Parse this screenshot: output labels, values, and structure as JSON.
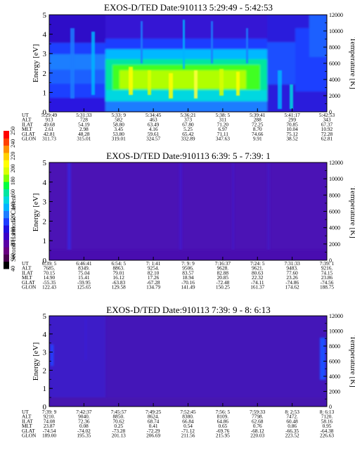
{
  "colorbar": {
    "title": "Second Harmonic Current",
    "ticks": [
      "40",
      "60",
      "80",
      "100",
      "120",
      "140",
      "160",
      "180",
      "200",
      "220",
      "240",
      "250"
    ],
    "colors": [
      "#000000",
      "#4a004f",
      "#6a0080",
      "#5b00a6",
      "#3a00c8",
      "#1f0fe0",
      "#1d3cff",
      "#1e7dff",
      "#00b4ff",
      "#00d8e0",
      "#00e6a0",
      "#00ff40",
      "#80ff00",
      "#d8ff00",
      "#ffff00",
      "#ffd000",
      "#ff9000",
      "#ff4000",
      "#ff0000"
    ]
  },
  "row_labels": [
    "UT",
    "ALT",
    "ILAT",
    "MLT",
    "GLAT",
    "GLON"
  ],
  "chart_data": [
    {
      "type": "heatmap",
      "title": "EXOS-D/TED   Date:910113  5:29:49 - 5:42:53",
      "ylabel": "Energy [eV]",
      "y2label": "Temperature [K]",
      "yticks": [
        "0",
        "1",
        "2",
        "3",
        "4",
        "5"
      ],
      "y2ticks": [
        "0",
        "2000",
        "4000",
        "6000",
        "8000",
        "10000",
        "12000"
      ],
      "ylim": [
        0,
        5
      ],
      "y2lim": [
        0,
        12000
      ],
      "orbit": {
        "UT": [
          "5:29:49",
          "5:31:33",
          "5:33: 9",
          "5:34:45",
          "5:36:21",
          "5:38: 5",
          "5:39:41",
          "5:41:17",
          "5:42:53"
        ],
        "ALT": [
          "913",
          "728",
          "582",
          "463",
          "373",
          "311",
          "288",
          "299",
          "343"
        ],
        "ILAT": [
          "49.68",
          "54.19",
          "58.80",
          "63.49",
          "67.80",
          "71.20",
          "72.25",
          "70.85",
          "67.37"
        ],
        "MLT": [
          "2.61",
          "2.98",
          "3.45",
          "4.16",
          "5.25",
          "6.97",
          "8.70",
          "10.04",
          "10.92"
        ],
        "GLAT": [
          "42.81",
          "48.28",
          "53.80",
          "59.61",
          "65.42",
          "71.11",
          "74.66",
          "75.12",
          "72.28"
        ],
        "GLON": [
          "311.73",
          "315.01",
          "319.01",
          "324.57",
          "332.89",
          "347.63",
          "9.91",
          "38.52",
          "62.81"
        ]
      }
    },
    {
      "type": "heatmap",
      "title": "EXOS-D/TED   Date:910113  6:39: 5 - 7:39: 1",
      "ylabel": "Energy [eV]",
      "y2label": "Temperature [K]",
      "yticks": [
        "0",
        "1",
        "2",
        "3",
        "4",
        "5"
      ],
      "y2ticks": [
        "0",
        "2000",
        "4000",
        "6000",
        "8000",
        "10000",
        "12000"
      ],
      "ylim": [
        0,
        5
      ],
      "y2lim": [
        0,
        12000
      ],
      "orbit": {
        "UT": [
          "6:39: 5",
          "6:46:41",
          "6:54: 5",
          "7: 1:41",
          "7: 9: 9",
          "7:16:37",
          "7:24: 5",
          "7:31:33",
          "7:39: 1"
        ],
        "ALT": [
          "7685.",
          "8349.",
          "8863.",
          "9254.",
          "9506.",
          "9628.",
          "9621.",
          "9483.",
          "9216."
        ],
        "ILAT": [
          "70.15",
          "75.04",
          "79.01",
          "82.10",
          "83.57",
          "82.88",
          "80.63",
          "77.60",
          "74.15"
        ],
        "MLT": [
          "14.90",
          "15.41",
          "16.12",
          "17.26",
          "18.94",
          "20.85",
          "22.32",
          "23.26",
          "23.86"
        ],
        "GLAT": [
          "-55.35",
          "-59.95",
          "-63.83",
          "-67.28",
          "-70.16",
          "-72.48",
          "-74.11",
          "-74.86",
          "-74.56"
        ],
        "GLON": [
          "122.43",
          "125.65",
          "129.58",
          "134.79",
          "141.49",
          "150.25",
          "161.37",
          "174.62",
          "188.75"
        ]
      }
    },
    {
      "type": "heatmap",
      "title": "EXOS-D/TED   Date:910113  7:39: 9 - 8: 6:13",
      "ylabel": "Energy [eV]",
      "y2label": "Temperature [K]",
      "yticks": [
        "0",
        "1",
        "2",
        "3",
        "4",
        "5"
      ],
      "y2ticks": [
        "0",
        "2000",
        "4000",
        "6000",
        "8000",
        "10000",
        "12000"
      ],
      "ylim": [
        0,
        5
      ],
      "y2lim": [
        0,
        12000
      ],
      "orbit": {
        "UT": [
          "7:39: 9",
          "7:42:37",
          "7:45:57",
          "7:49:25",
          "7:52:45",
          "7:56: 5",
          "7:59:33",
          "8: 2:53",
          "8: 6:13"
        ],
        "ALT": [
          "9210.",
          "9040.",
          "8850.",
          "8624.",
          "8380.",
          "8109.",
          "7798.",
          "7472.",
          "7120."
        ],
        "ILAT": [
          "74.08",
          "72.36",
          "70.62",
          "68.74",
          "66.84",
          "64.86",
          "62.68",
          "60.48",
          "58.16"
        ],
        "MLT": [
          "23.87",
          "0.08",
          "0.25",
          "0.41",
          "0.54",
          "0.65",
          "0.76",
          "0.86",
          "0.95"
        ],
        "GLAT": [
          "-74.54",
          "-74.02",
          "-73.28",
          "-72.29",
          "-71.12",
          "-69.76",
          "-68.12",
          "-66.35",
          "-64.38"
        ],
        "GLON": [
          "189.00",
          "195.35",
          "201.13",
          "206.69",
          "211.56",
          "215.95",
          "220.03",
          "223.52",
          "226.63"
        ]
      }
    }
  ]
}
